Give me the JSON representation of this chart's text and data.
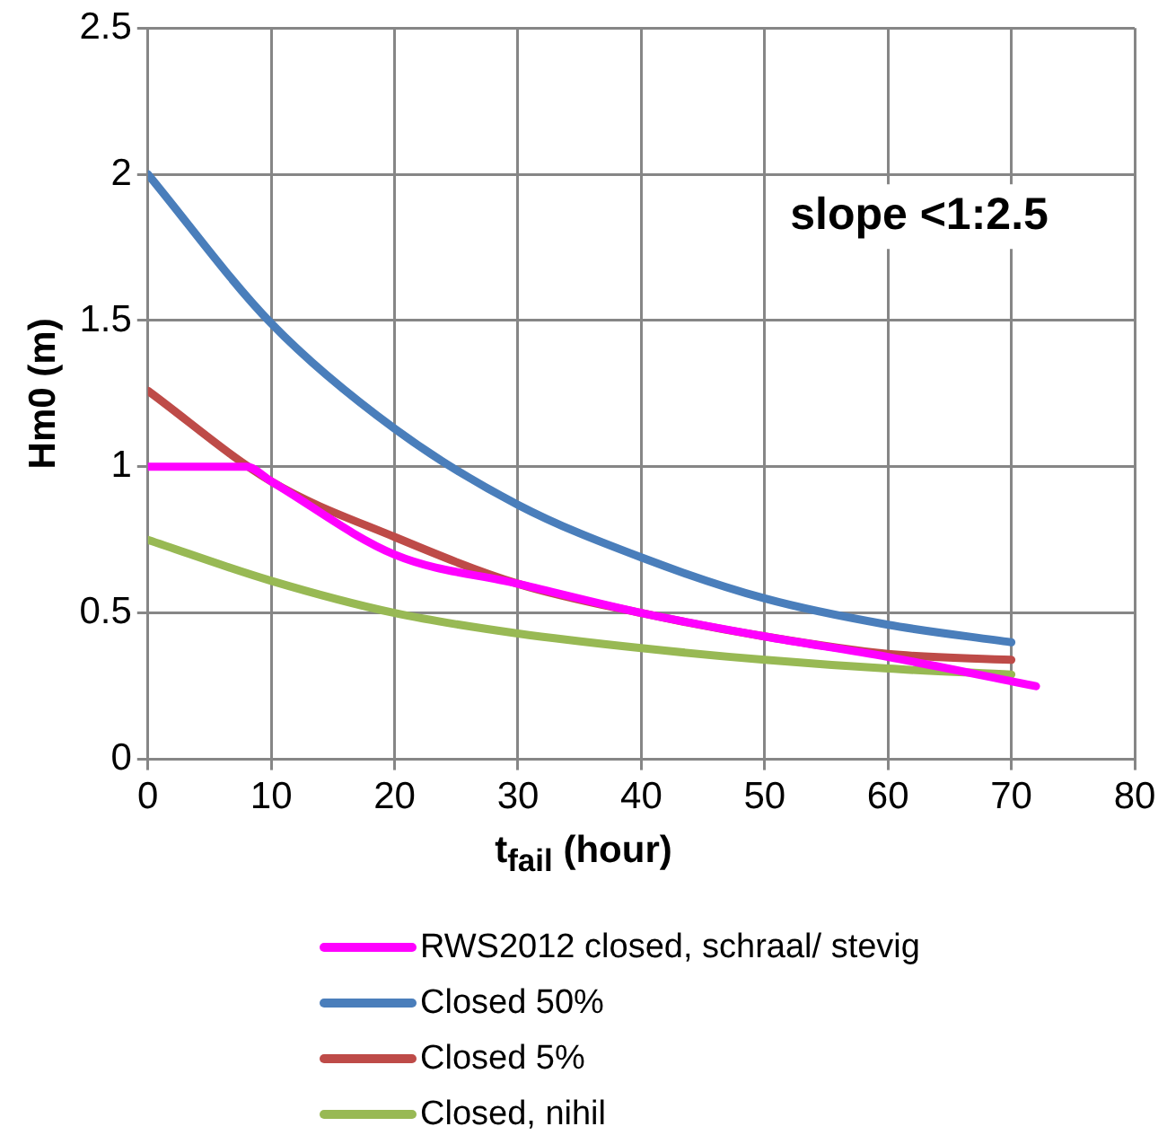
{
  "chart_data": {
    "type": "line",
    "xlabel": "t$_{fail}$ (hour)",
    "ylabel": "Hm0 (m)",
    "xlim": [
      0,
      80
    ],
    "xticks": [
      0,
      10,
      20,
      30,
      40,
      50,
      60,
      70,
      80
    ],
    "ylim": [
      0,
      2.5
    ],
    "yticks": [
      0,
      0.5,
      1,
      1.5,
      2,
      2.5
    ],
    "grid": true,
    "legend": "bottom",
    "marker": "none",
    "line_style": "solid",
    "annotations": [
      "slope <1:2.5"
    ],
    "series": [
      {
        "name": "RWS2012 closed, schraal/ stevig",
        "color": "#ff00ff",
        "x": [
          0,
          8,
          10,
          20,
          30,
          40,
          50,
          60,
          72
        ],
        "values": [
          1,
          1,
          0.95,
          0.7,
          0.6,
          0.5,
          0.42,
          0.35,
          0.25
        ]
      },
      {
        "name": "Closed 50%",
        "color": "#4a7ebb",
        "x": [
          0,
          10,
          20,
          30,
          40,
          50,
          60,
          70
        ],
        "values": [
          2,
          1.49,
          1.13,
          0.87,
          0.69,
          0.55,
          0.46,
          0.4
        ]
      },
      {
        "name": "Closed 5%",
        "color": "#be4b48",
        "x": [
          0,
          10,
          20,
          30,
          40,
          50,
          60,
          70
        ],
        "values": [
          1.26,
          0.95,
          0.76,
          0.6,
          0.5,
          0.42,
          0.36,
          0.34
        ]
      },
      {
        "name": "Closed, nihil",
        "color": "#98b954",
        "x": [
          0,
          10,
          20,
          30,
          40,
          50,
          60,
          70
        ],
        "values": [
          0.75,
          0.61,
          0.5,
          0.43,
          0.38,
          0.34,
          0.31,
          0.29
        ]
      }
    ]
  }
}
